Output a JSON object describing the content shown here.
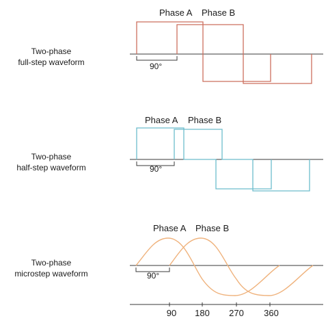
{
  "colors": {
    "full_step": "#cc6f5e",
    "half_step": "#6cbccc",
    "microstep": "#efb27c",
    "axis": "#3a3a3a",
    "text": "#1a1a1a"
  },
  "rows": [
    {
      "label_line1": "Two-phase",
      "label_line2": "full-step waveform",
      "phase_a": "Phase A",
      "phase_b": "Phase B",
      "angle": "90°"
    },
    {
      "label_line1": "Two-phase",
      "label_line2": "half-step waveform",
      "phase_a": "Phase A",
      "phase_b": "Phase B",
      "angle": "90°"
    },
    {
      "label_line1": "Two-phase",
      "label_line2": "microstep waveform",
      "phase_a": "Phase A",
      "phase_b": "Phase B",
      "angle": "90°"
    }
  ],
  "degree_axis": {
    "ticks": [
      "90",
      "180",
      "270",
      "360"
    ]
  }
}
